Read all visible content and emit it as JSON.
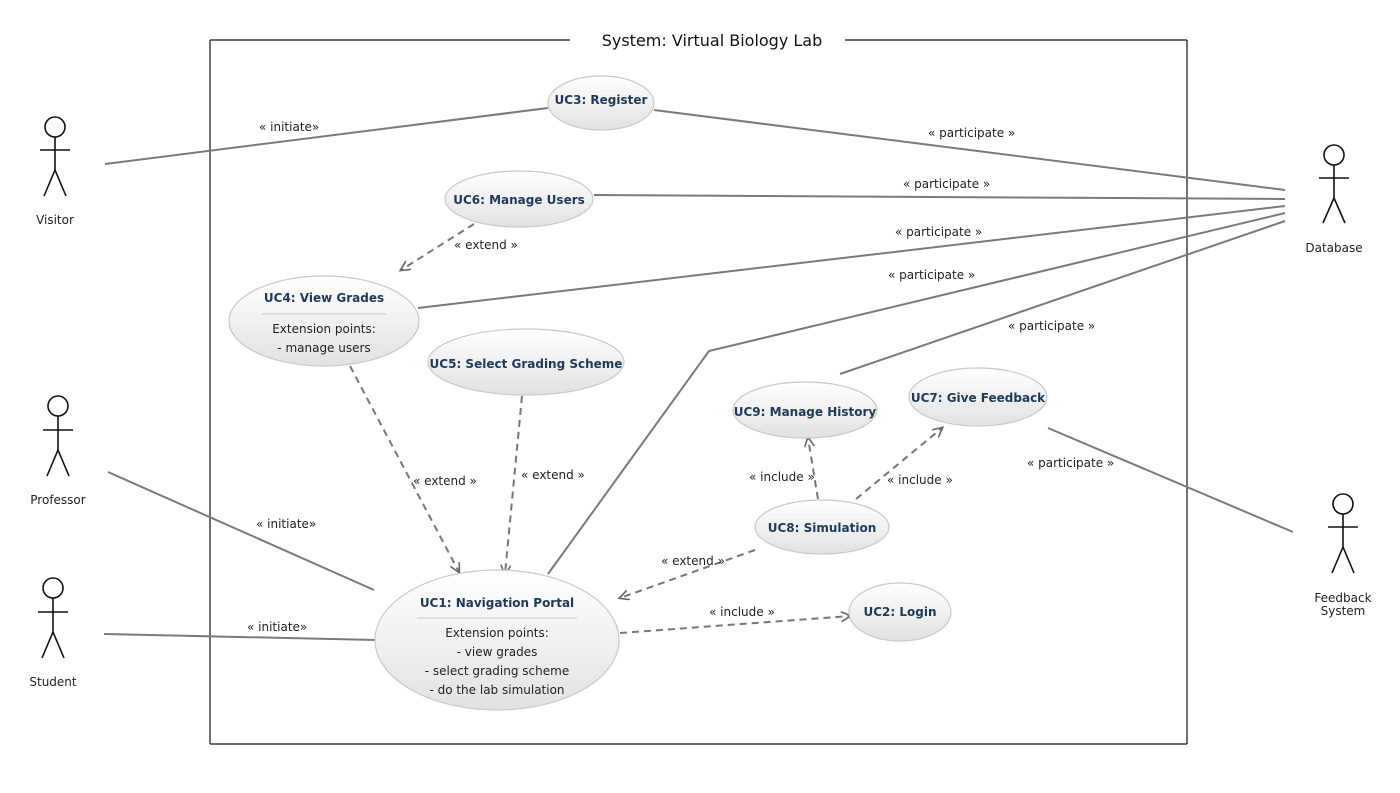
{
  "system": {
    "title": "System: Virtual Biology Lab"
  },
  "actors": {
    "visitor": "Visitor",
    "professor": "Professor",
    "student": "Student",
    "database": "Database",
    "feedback_line1": "Feedback",
    "feedback_line2": "System"
  },
  "use_cases": {
    "uc3": "UC3: Register",
    "uc6": "UC6: Manage Users",
    "uc4": {
      "title": "UC4: View Grades",
      "ext_header": "Extension points:",
      "ext1": "- manage users"
    },
    "uc5": "UC5: Select Grading Scheme",
    "uc9": "UC9: Manage History",
    "uc7": "UC7: Give Feedback",
    "uc8": "UC8: Simulation",
    "uc1": {
      "title": "UC1: Navigation Portal",
      "ext_header": "Extension points:",
      "ext1": "- view grades",
      "ext2": "- select grading scheme",
      "ext3": "- do the lab simulation"
    },
    "uc2": "UC2: Login"
  },
  "labels": {
    "initiate": "« initiate»",
    "participate": "« participate »",
    "extend": "« extend »",
    "include": "« include »"
  }
}
